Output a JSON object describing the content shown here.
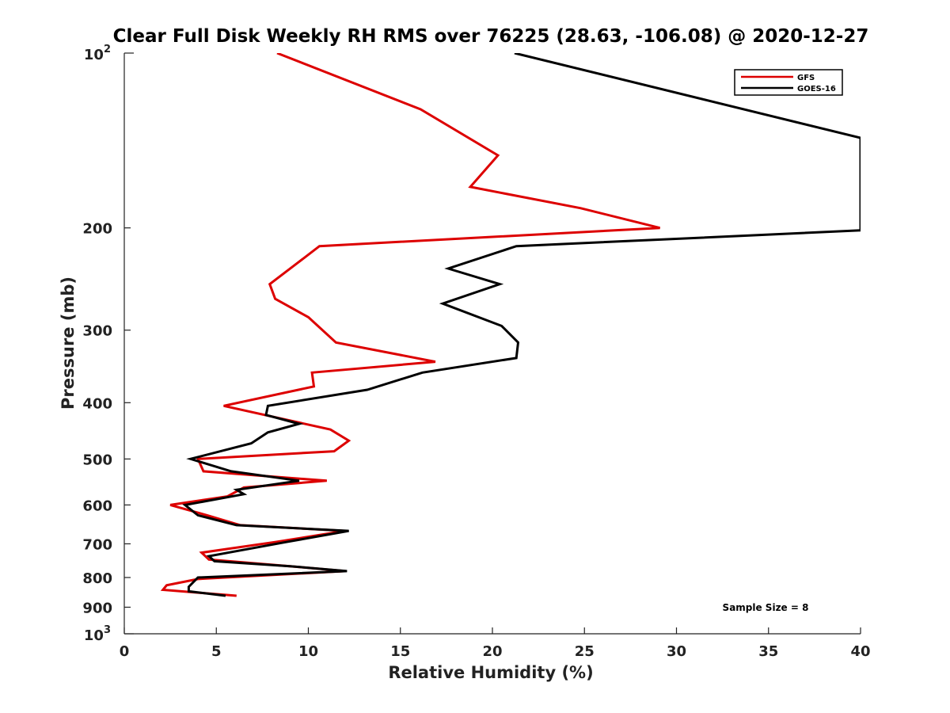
{
  "chart_data": {
    "type": "line",
    "title": "Clear Full Disk Weekly RH RMS over 76225 (28.63, -106.08) @ 2020-12-27",
    "xlabel": "Relative Humidity (%)",
    "ylabel": "Pressure (mb)",
    "xlim": [
      0,
      40
    ],
    "ylim": [
      100,
      1000
    ],
    "yscale": "log",
    "y_reversed": true,
    "xticks": [
      "0",
      "5",
      "10",
      "15",
      "20",
      "25",
      "30",
      "35",
      "40"
    ],
    "yticks": [
      {
        "value": 200,
        "label": "200"
      },
      {
        "value": 300,
        "label": "300"
      },
      {
        "value": 400,
        "label": "400"
      },
      {
        "value": 500,
        "label": "500"
      },
      {
        "value": 600,
        "label": "600"
      },
      {
        "value": 700,
        "label": "700"
      },
      {
        "value": 800,
        "label": "800"
      },
      {
        "value": 900,
        "label": "900"
      }
    ],
    "ytick_min": {
      "base": "10",
      "exp": "2"
    },
    "ytick_max": {
      "base": "10",
      "exp": "3"
    },
    "grid": false,
    "legend_position": "top-right",
    "annotation": "Sample Size = 8",
    "series": [
      {
        "name": "GFS",
        "color": "#dd0000",
        "points": [
          [
            8.3,
            100
          ],
          [
            16.1,
            125
          ],
          [
            20.3,
            150
          ],
          [
            18.8,
            170
          ],
          [
            24.8,
            185
          ],
          [
            29.1,
            200
          ],
          [
            10.6,
            215
          ],
          [
            9.4,
            230
          ],
          [
            7.9,
            250
          ],
          [
            8.2,
            265
          ],
          [
            10.0,
            285
          ],
          [
            11.5,
            315
          ],
          [
            16.9,
            340
          ],
          [
            10.2,
            355
          ],
          [
            10.3,
            375
          ],
          [
            5.4,
            405
          ],
          [
            11.2,
            445
          ],
          [
            12.2,
            465
          ],
          [
            11.4,
            485
          ],
          [
            4.0,
            500
          ],
          [
            4.3,
            525
          ],
          [
            11.0,
            545
          ],
          [
            6.5,
            560
          ],
          [
            5.6,
            580
          ],
          [
            2.5,
            600
          ],
          [
            4.5,
            625
          ],
          [
            6.3,
            650
          ],
          [
            12.0,
            665
          ],
          [
            8.2,
            695
          ],
          [
            4.2,
            725
          ],
          [
            4.6,
            745
          ],
          [
            9.0,
            765
          ],
          [
            12.0,
            780
          ],
          [
            4.0,
            805
          ],
          [
            2.3,
            825
          ],
          [
            2.1,
            840
          ],
          [
            6.1,
            860
          ]
        ]
      },
      {
        "name": "GOES-16",
        "color": "#000000",
        "points": [
          [
            21.2,
            100
          ],
          [
            40.0,
            140
          ],
          [
            40.0,
            202
          ],
          [
            21.3,
            215
          ],
          [
            17.6,
            235
          ],
          [
            20.4,
            250
          ],
          [
            17.3,
            270
          ],
          [
            20.5,
            295
          ],
          [
            21.4,
            315
          ],
          [
            21.3,
            335
          ],
          [
            16.2,
            355
          ],
          [
            13.2,
            380
          ],
          [
            7.8,
            405
          ],
          [
            7.7,
            420
          ],
          [
            9.5,
            435
          ],
          [
            7.8,
            450
          ],
          [
            6.9,
            470
          ],
          [
            3.6,
            500
          ],
          [
            5.8,
            525
          ],
          [
            9.5,
            545
          ],
          [
            6.1,
            565
          ],
          [
            6.5,
            575
          ],
          [
            3.3,
            600
          ],
          [
            4.0,
            625
          ],
          [
            6.1,
            650
          ],
          [
            12.2,
            665
          ],
          [
            8.8,
            695
          ],
          [
            4.6,
            735
          ],
          [
            4.9,
            750
          ],
          [
            9.0,
            765
          ],
          [
            12.1,
            780
          ],
          [
            4.0,
            800
          ],
          [
            3.5,
            830
          ],
          [
            3.5,
            845
          ],
          [
            5.5,
            860
          ]
        ]
      }
    ]
  }
}
